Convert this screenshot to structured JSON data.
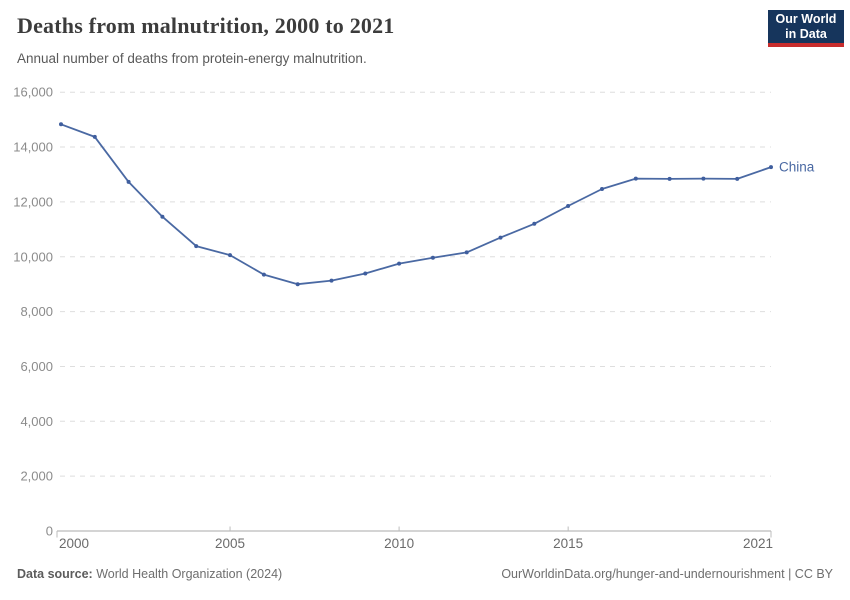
{
  "logo": {
    "line1": "Our World",
    "line2": "in Data"
  },
  "chart_data": {
    "type": "line",
    "title": "Deaths from malnutrition, 2000 to 2021",
    "subtitle": "Annual number of deaths from protein-energy malnutrition.",
    "x": [
      2000,
      2001,
      2002,
      2003,
      2004,
      2005,
      2006,
      2007,
      2008,
      2009,
      2010,
      2011,
      2012,
      2013,
      2014,
      2015,
      2016,
      2017,
      2018,
      2019,
      2020,
      2021
    ],
    "series": [
      {
        "name": "China",
        "values": [
          14830,
          14370,
          12730,
          11460,
          10390,
          10060,
          9350,
          9000,
          9130,
          9390,
          9750,
          9960,
          10160,
          10700,
          11200,
          11850,
          12470,
          12850,
          12840,
          12850,
          12840,
          13270
        ]
      }
    ],
    "xlabel": "",
    "ylabel": "",
    "ylim": [
      0,
      16000
    ],
    "grid": "horizontal-dashed",
    "legend_position": "end-of-line-label",
    "yticks": [
      {
        "value": 0,
        "label": "0"
      },
      {
        "value": 2000,
        "label": "2,000"
      },
      {
        "value": 4000,
        "label": "4,000"
      },
      {
        "value": 6000,
        "label": "6,000"
      },
      {
        "value": 8000,
        "label": "8,000"
      },
      {
        "value": 10000,
        "label": "10,000"
      },
      {
        "value": 12000,
        "label": "12,000"
      },
      {
        "value": 14000,
        "label": "14,000"
      },
      {
        "value": 16000,
        "label": "16,000"
      }
    ],
    "xticks": [
      {
        "value": 2000,
        "label": "2000"
      },
      {
        "value": 2005,
        "label": "2005"
      },
      {
        "value": 2010,
        "label": "2010"
      },
      {
        "value": 2015,
        "label": "2015"
      },
      {
        "value": 2021,
        "label": "2021"
      }
    ]
  },
  "footer": {
    "source_label": "Data source:",
    "source_value": "World Health Organization (2024)",
    "link": "OurWorldinData.org/hunger-and-undernourishment",
    "license_suffix": " | CC BY"
  },
  "colors": {
    "line": "#4a69a3",
    "dot": "#3f5e9e",
    "series_label": "#4a69a3",
    "grid": "#dedede",
    "axis": "#a8a8a8",
    "tick": "#bdbdbd",
    "y_label": "#8b8b8b",
    "x_label": "#6b6b6b",
    "title": "#3c3c3c",
    "subtitle": "#5a5a5a",
    "footer": "#6e6e6e",
    "logo_bg": "#16355c",
    "logo_red": "#c82d2d"
  }
}
